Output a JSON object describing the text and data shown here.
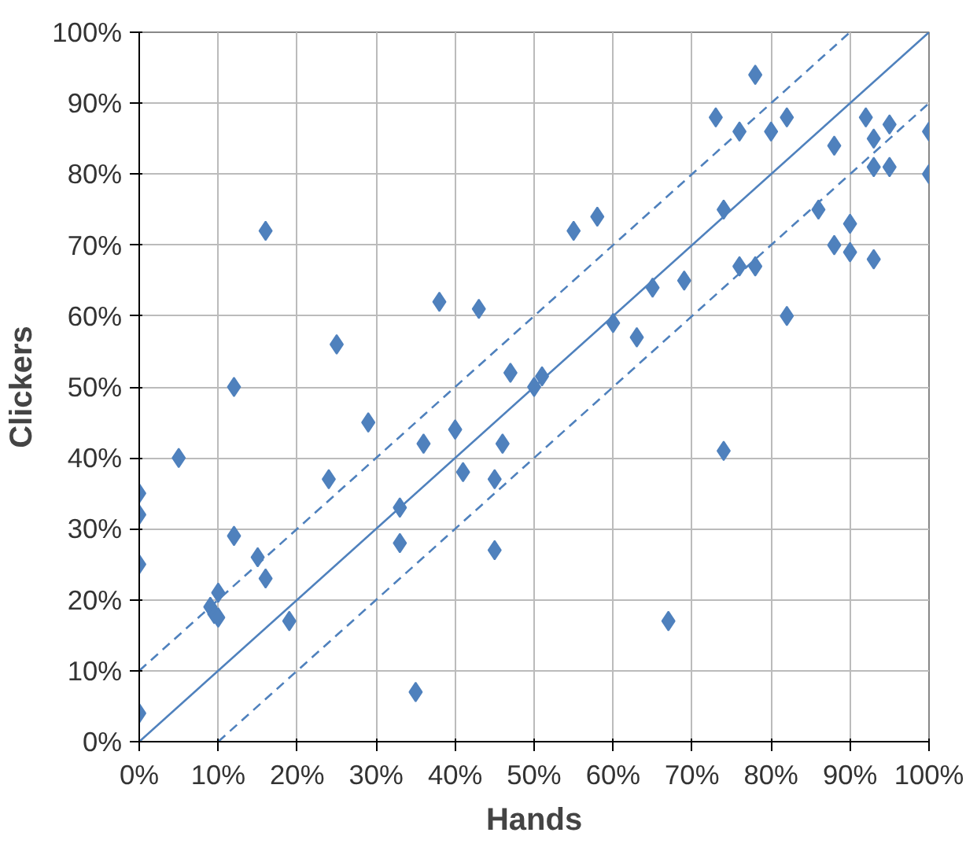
{
  "chart_data": {
    "type": "scatter",
    "xlabel": "Hands",
    "ylabel": "Clickers",
    "xlim": [
      0,
      100
    ],
    "ylim": [
      0,
      100
    ],
    "xticks": [
      {
        "value": 0,
        "label": "0%"
      },
      {
        "value": 10,
        "label": "10%"
      },
      {
        "value": 20,
        "label": "20%"
      },
      {
        "value": 30,
        "label": "30%"
      },
      {
        "value": 40,
        "label": "40%"
      },
      {
        "value": 50,
        "label": "50%"
      },
      {
        "value": 60,
        "label": "60%"
      },
      {
        "value": 70,
        "label": "70%"
      },
      {
        "value": 80,
        "label": "80%"
      },
      {
        "value": 90,
        "label": "90%"
      },
      {
        "value": 100,
        "label": "100%"
      }
    ],
    "yticks": [
      {
        "value": 0,
        "label": "0%"
      },
      {
        "value": 10,
        "label": "10%"
      },
      {
        "value": 20,
        "label": "20%"
      },
      {
        "value": 30,
        "label": "30%"
      },
      {
        "value": 40,
        "label": "40%"
      },
      {
        "value": 50,
        "label": "50%"
      },
      {
        "value": 60,
        "label": "60%"
      },
      {
        "value": 70,
        "label": "70%"
      },
      {
        "value": 80,
        "label": "80%"
      },
      {
        "value": 90,
        "label": "90%"
      },
      {
        "value": 100,
        "label": "100%"
      }
    ],
    "grid": true,
    "marker": "diamond",
    "series": [
      {
        "color": "#4f81bd",
        "x": [
          0,
          0,
          0,
          0,
          5,
          9,
          9.5,
          10,
          10,
          12,
          12,
          15,
          16,
          16,
          19,
          24,
          25,
          29,
          33,
          33,
          35,
          36,
          38,
          40,
          41,
          43,
          45,
          45,
          46,
          47,
          50,
          51,
          55,
          58,
          60,
          63,
          65,
          67,
          69,
          73,
          74,
          74,
          76,
          76,
          78,
          78,
          80,
          82,
          82,
          86,
          88,
          88,
          90,
          90,
          92,
          93,
          93,
          93,
          95,
          95,
          100,
          100
        ],
        "values": [
          35,
          32,
          25,
          4,
          40,
          19,
          18,
          21,
          17.5,
          29,
          50,
          26,
          72,
          23,
          17,
          37,
          56,
          45,
          28,
          33,
          7,
          42,
          62,
          44,
          38,
          61,
          37,
          27,
          42,
          52,
          50,
          51.5,
          72,
          74,
          59,
          57,
          64,
          17,
          65,
          88,
          75,
          41,
          86,
          67,
          94,
          67,
          86,
          88,
          60,
          75,
          84,
          70,
          73,
          69,
          88,
          81,
          85,
          68,
          81,
          87,
          86,
          80
        ]
      },
      {
        "type": "line",
        "color": "#4f81bd",
        "line_style": "solid",
        "marker": "none",
        "x": [
          0,
          100
        ],
        "values": [
          0,
          100
        ]
      },
      {
        "type": "line",
        "color": "#4f81bd",
        "line_style": "dashed",
        "marker": "none",
        "x": [
          0,
          90
        ],
        "values": [
          10,
          100
        ]
      },
      {
        "type": "line",
        "color": "#4f81bd",
        "line_style": "dashed",
        "marker": "none",
        "x": [
          10,
          100
        ],
        "values": [
          0,
          90
        ]
      }
    ]
  }
}
